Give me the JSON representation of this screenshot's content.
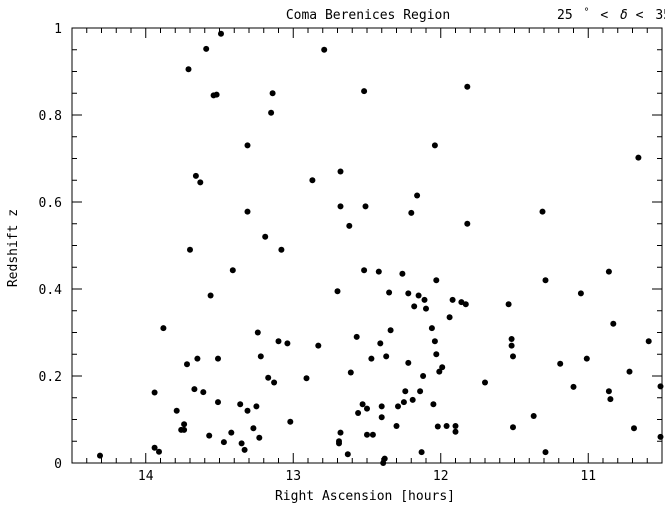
{
  "chart_data": {
    "type": "scatter",
    "title": "Coma Berenices Region",
    "subtitle_parts": {
      "left": "25",
      "deg1": "°",
      "lt1": "<",
      "delta": "δ",
      "lt2": "<",
      "right": "35",
      "deg2": "°"
    },
    "xlabel": "Right Ascension [hours]",
    "ylabel": "Redshift z",
    "xlim": [
      14.5,
      10.5
    ],
    "ylim": [
      0,
      1
    ],
    "x_reversed": true,
    "x_ticks": [
      14,
      13,
      12,
      11
    ],
    "x_tick_labels": [
      "14",
      "13",
      "12",
      "11"
    ],
    "y_ticks": [
      0,
      0.2,
      0.4,
      0.6,
      0.8,
      1
    ],
    "y_tick_labels": [
      "0",
      "0.2",
      "0.4",
      "0.6",
      "0.8",
      "1"
    ],
    "grid": false,
    "point_color": "#000000",
    "points": [
      [
        14.31,
        0.017
      ],
      [
        13.94,
        0.162
      ],
      [
        13.94,
        0.035
      ],
      [
        13.91,
        0.026
      ],
      [
        13.88,
        0.31
      ],
      [
        13.79,
        0.12
      ],
      [
        13.76,
        0.076
      ],
      [
        13.74,
        0.076
      ],
      [
        13.74,
        0.089
      ],
      [
        13.72,
        0.227
      ],
      [
        13.71,
        0.905
      ],
      [
        13.7,
        0.49
      ],
      [
        13.67,
        0.17
      ],
      [
        13.66,
        0.66
      ],
      [
        13.65,
        0.24
      ],
      [
        13.63,
        0.645
      ],
      [
        13.61,
        0.163
      ],
      [
        13.59,
        0.952
      ],
      [
        13.57,
        0.063
      ],
      [
        13.56,
        0.385
      ],
      [
        13.54,
        0.845
      ],
      [
        13.52,
        0.847
      ],
      [
        13.51,
        0.14
      ],
      [
        13.51,
        0.24
      ],
      [
        13.49,
        0.987
      ],
      [
        13.47,
        0.048
      ],
      [
        13.42,
        0.07
      ],
      [
        13.41,
        0.443
      ],
      [
        13.36,
        0.135
      ],
      [
        13.35,
        0.045
      ],
      [
        13.33,
        0.03
      ],
      [
        13.31,
        0.12
      ],
      [
        13.31,
        0.578
      ],
      [
        13.31,
        0.73
      ],
      [
        13.27,
        0.08
      ],
      [
        13.25,
        0.13
      ],
      [
        13.24,
        0.3
      ],
      [
        13.23,
        0.058
      ],
      [
        13.22,
        0.245
      ],
      [
        13.19,
        0.52
      ],
      [
        13.17,
        0.196
      ],
      [
        13.15,
        0.805
      ],
      [
        13.14,
        0.85
      ],
      [
        13.13,
        0.185
      ],
      [
        13.1,
        0.28
      ],
      [
        13.08,
        0.49
      ],
      [
        13.04,
        0.275
      ],
      [
        13.02,
        0.095
      ],
      [
        12.91,
        0.195
      ],
      [
        12.87,
        0.65
      ],
      [
        12.83,
        0.27
      ],
      [
        12.79,
        0.95
      ],
      [
        12.7,
        0.395
      ],
      [
        12.69,
        0.045
      ],
      [
        12.69,
        0.05
      ],
      [
        12.68,
        0.59
      ],
      [
        12.68,
        0.67
      ],
      [
        12.68,
        0.07
      ],
      [
        12.63,
        0.02
      ],
      [
        12.62,
        0.545
      ],
      [
        12.61,
        0.208
      ],
      [
        12.57,
        0.29
      ],
      [
        12.56,
        0.115
      ],
      [
        12.53,
        0.135
      ],
      [
        12.52,
        0.443
      ],
      [
        12.52,
        0.855
      ],
      [
        12.51,
        0.59
      ],
      [
        12.5,
        0.125
      ],
      [
        12.5,
        0.065
      ],
      [
        12.47,
        0.24
      ],
      [
        12.46,
        0.065
      ],
      [
        12.42,
        0.44
      ],
      [
        12.41,
        0.275
      ],
      [
        12.4,
        0.13
      ],
      [
        12.4,
        0.105
      ],
      [
        12.39,
        0.0
      ],
      [
        12.38,
        0.01
      ],
      [
        12.37,
        0.245
      ],
      [
        12.35,
        0.392
      ],
      [
        12.34,
        0.305
      ],
      [
        12.3,
        0.085
      ],
      [
        12.29,
        0.13
      ],
      [
        12.26,
        0.435
      ],
      [
        12.25,
        0.14
      ],
      [
        12.24,
        0.165
      ],
      [
        12.22,
        0.39
      ],
      [
        12.22,
        0.23
      ],
      [
        12.2,
        0.575
      ],
      [
        12.19,
        0.145
      ],
      [
        12.18,
        0.36
      ],
      [
        12.16,
        0.615
      ],
      [
        12.15,
        0.385
      ],
      [
        12.14,
        0.165
      ],
      [
        12.13,
        0.025
      ],
      [
        12.12,
        0.2
      ],
      [
        12.11,
        0.375
      ],
      [
        12.1,
        0.355
      ],
      [
        12.06,
        0.31
      ],
      [
        12.05,
        0.135
      ],
      [
        12.04,
        0.28
      ],
      [
        12.04,
        0.73
      ],
      [
        12.03,
        0.42
      ],
      [
        12.03,
        0.25
      ],
      [
        12.02,
        0.084
      ],
      [
        12.01,
        0.21
      ],
      [
        11.99,
        0.22
      ],
      [
        11.96,
        0.085
      ],
      [
        11.94,
        0.335
      ],
      [
        11.92,
        0.375
      ],
      [
        11.9,
        0.085
      ],
      [
        11.9,
        0.072
      ],
      [
        11.86,
        0.37
      ],
      [
        11.83,
        0.365
      ],
      [
        11.82,
        0.865
      ],
      [
        11.82,
        0.55
      ],
      [
        11.7,
        0.185
      ],
      [
        11.54,
        0.365
      ],
      [
        11.52,
        0.285
      ],
      [
        11.52,
        0.27
      ],
      [
        11.51,
        0.245
      ],
      [
        11.51,
        0.082
      ],
      [
        11.37,
        0.108
      ],
      [
        11.31,
        0.578
      ],
      [
        11.29,
        0.42
      ],
      [
        11.29,
        0.025
      ],
      [
        11.19,
        0.228
      ],
      [
        11.1,
        0.175
      ],
      [
        11.05,
        0.39
      ],
      [
        11.01,
        0.24
      ],
      [
        10.86,
        0.44
      ],
      [
        10.86,
        0.165
      ],
      [
        10.85,
        0.147
      ],
      [
        10.83,
        0.32
      ],
      [
        10.72,
        0.21
      ],
      [
        10.69,
        0.08
      ],
      [
        10.66,
        0.702
      ],
      [
        10.59,
        0.28
      ],
      [
        10.51,
        0.06
      ],
      [
        10.51,
        0.176
      ]
    ]
  }
}
